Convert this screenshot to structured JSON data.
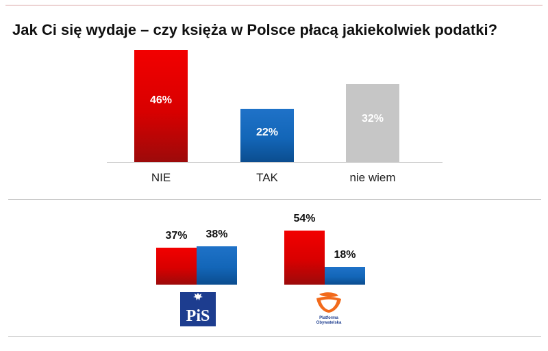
{
  "title": "Jak Ci się wydaje – czy księża w Polsce płacą jakiekolwiek podatki?",
  "colors": {
    "red": "#e00000",
    "blue": "#1565b8",
    "gray": "#c6c6c6",
    "text": "#111111"
  },
  "chart_data": [
    {
      "type": "bar",
      "title": "Jak Ci się wydaje – czy księża w Polsce płacą jakiekolwiek podatki?",
      "categories": [
        "NIE",
        "TAK",
        "nie wiem"
      ],
      "values": [
        46,
        22,
        32
      ],
      "labels": [
        "46%",
        "22%",
        "32%"
      ],
      "unit": "%",
      "ylim": [
        0,
        46
      ],
      "grid": false,
      "xlabel": "",
      "ylabel": ""
    },
    {
      "type": "bar",
      "title": "",
      "categories": [
        "PiS",
        "Platforma Obywatelska"
      ],
      "series": [
        {
          "name": "NIE",
          "values": [
            37,
            54
          ],
          "labels": [
            "37%",
            "54%"
          ]
        },
        {
          "name": "TAK",
          "values": [
            38,
            18
          ],
          "labels": [
            "38%",
            "18%"
          ]
        }
      ],
      "unit": "%",
      "ylim": [
        0,
        54
      ],
      "grid": false,
      "logos": [
        {
          "name": "pis-logo",
          "text": "PiS"
        },
        {
          "name": "po-logo",
          "text_lines": [
            "Platforma",
            "Obywatelska"
          ]
        }
      ]
    }
  ]
}
